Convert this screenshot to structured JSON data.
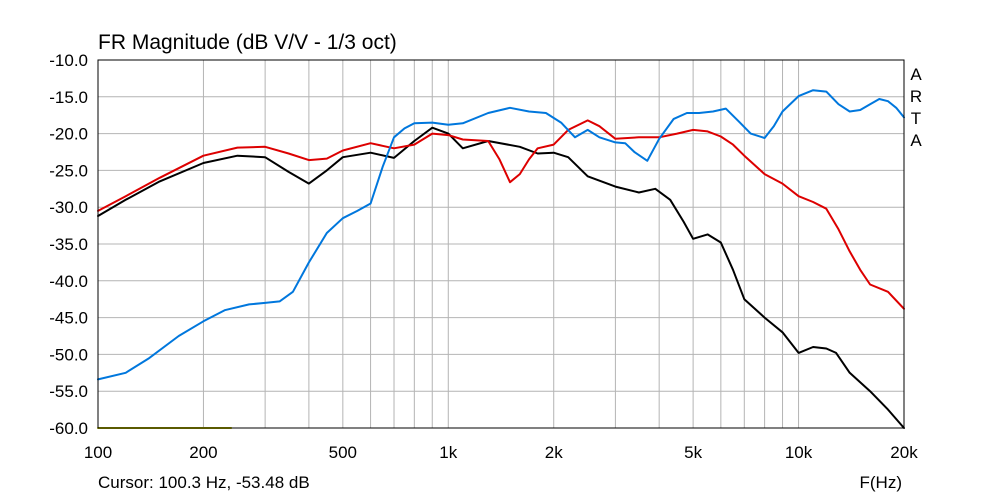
{
  "chart_data": {
    "type": "line",
    "title": "FR Magnitude (dB V/V - 1/3 oct)",
    "watermark": "ARTA",
    "xlabel": "F(Hz)",
    "ylabel": "",
    "x_scale": "log",
    "xlim": [
      100,
      20000
    ],
    "ylim": [
      -60,
      -10
    ],
    "grid": true,
    "x_tick_labels": [
      {
        "value": 100,
        "label": "100"
      },
      {
        "value": 200,
        "label": "200"
      },
      {
        "value": 500,
        "label": "500"
      },
      {
        "value": 1000,
        "label": "1k"
      },
      {
        "value": 2000,
        "label": "2k"
      },
      {
        "value": 5000,
        "label": "5k"
      },
      {
        "value": 10000,
        "label": "10k"
      },
      {
        "value": 20000,
        "label": "20k"
      }
    ],
    "y_tick_labels": [
      "-10.0",
      "-15.0",
      "-20.0",
      "-25.0",
      "-30.0",
      "-35.0",
      "-40.0",
      "-45.0",
      "-50.0",
      "-55.0",
      "-60.0"
    ],
    "cursor_text": "Cursor: 100.3 Hz, -53.48 dB",
    "colors": {
      "background": "#ffffff",
      "grid": "#b4b4b4",
      "frame": "#000000"
    },
    "series": [
      {
        "color": "#000000",
        "x": [
          100,
          120,
          150,
          200,
          250,
          300,
          350,
          400,
          450,
          500,
          600,
          700,
          800,
          900,
          1000,
          1100,
          1300,
          1600,
          1800,
          2000,
          2200,
          2500,
          3000,
          3500,
          3900,
          4300,
          4700,
          5000,
          5500,
          6000,
          6500,
          7000,
          8000,
          9000,
          10000,
          11000,
          12000,
          12800,
          14000,
          16000,
          18000,
          20000
        ],
        "y": [
          -31.2,
          -29.0,
          -26.5,
          -24.0,
          -23.0,
          -23.2,
          -25.2,
          -26.8,
          -25.0,
          -23.2,
          -22.6,
          -23.3,
          -21.0,
          -19.2,
          -20.0,
          -22.0,
          -21.0,
          -21.8,
          -22.7,
          -22.6,
          -23.2,
          -25.8,
          -27.2,
          -28.0,
          -27.5,
          -29.0,
          -32.0,
          -34.3,
          -33.7,
          -34.8,
          -38.5,
          -42.5,
          -45.0,
          -47.0,
          -49.8,
          -49.0,
          -49.2,
          -49.8,
          -52.5,
          -55.0,
          -57.5,
          -60.0
        ]
      },
      {
        "color": "#dd0000",
        "x": [
          100,
          120,
          150,
          200,
          250,
          300,
          350,
          400,
          450,
          500,
          600,
          700,
          800,
          900,
          1000,
          1100,
          1300,
          1400,
          1500,
          1600,
          1700,
          1800,
          2000,
          2200,
          2500,
          2700,
          3000,
          3500,
          4000,
          4500,
          5000,
          5500,
          6000,
          6500,
          7000,
          8000,
          9000,
          10000,
          11000,
          12000,
          13000,
          14000,
          15000,
          16000,
          18000,
          20000
        ],
        "y": [
          -30.5,
          -28.5,
          -26.0,
          -23.0,
          -21.9,
          -21.8,
          -22.7,
          -23.6,
          -23.4,
          -22.3,
          -21.3,
          -22.0,
          -21.5,
          -20.0,
          -20.2,
          -20.8,
          -21.0,
          -23.5,
          -26.6,
          -25.5,
          -23.5,
          -22.0,
          -21.5,
          -19.5,
          -18.2,
          -19.0,
          -20.7,
          -20.5,
          -20.5,
          -20.0,
          -19.5,
          -19.7,
          -20.4,
          -21.5,
          -23.0,
          -25.5,
          -26.8,
          -28.5,
          -29.3,
          -30.2,
          -33.0,
          -36.0,
          -38.5,
          -40.5,
          -41.5,
          -43.8
        ]
      },
      {
        "color": "#0077dd",
        "x": [
          100,
          120,
          140,
          170,
          200,
          230,
          270,
          300,
          330,
          360,
          400,
          450,
          500,
          550,
          600,
          650,
          700,
          750,
          800,
          900,
          1000,
          1100,
          1300,
          1500,
          1700,
          1900,
          2100,
          2300,
          2500,
          2700,
          3000,
          3200,
          3400,
          3700,
          4000,
          4400,
          4800,
          5200,
          5700,
          6200,
          6800,
          7300,
          8000,
          8500,
          9000,
          10000,
          11000,
          12000,
          13000,
          14000,
          15000,
          16000,
          17000,
          18000,
          19000,
          20000
        ],
        "y": [
          -53.4,
          -52.5,
          -50.5,
          -47.5,
          -45.5,
          -44.0,
          -43.2,
          -43.0,
          -42.8,
          -41.5,
          -37.5,
          -33.5,
          -31.5,
          -30.5,
          -29.5,
          -24.5,
          -20.5,
          -19.3,
          -18.6,
          -18.5,
          -18.8,
          -18.6,
          -17.2,
          -16.5,
          -17.0,
          -17.2,
          -18.5,
          -20.5,
          -19.5,
          -20.5,
          -21.2,
          -21.3,
          -22.5,
          -23.7,
          -20.7,
          -18.0,
          -17.2,
          -17.2,
          -17.0,
          -16.6,
          -18.5,
          -20.0,
          -20.6,
          -19.0,
          -17.0,
          -14.9,
          -14.1,
          -14.3,
          -16.0,
          -17.0,
          -16.8,
          -16.0,
          -15.3,
          -15.6,
          -16.5,
          -17.8
        ]
      },
      {
        "color": "#b4b400",
        "x": [
          100,
          240
        ],
        "y": [
          -60,
          -60
        ]
      }
    ]
  }
}
